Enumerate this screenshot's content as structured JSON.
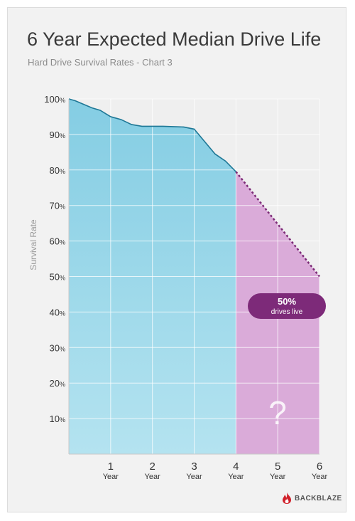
{
  "chart_data": {
    "type": "area",
    "title": "6 Year Expected Median Drive Life",
    "subtitle": "Hard Drive Survival Rates - Chart 3",
    "ylabel": "Survival Rate",
    "xlabel": "",
    "xlim": [
      0,
      6
    ],
    "ylim": [
      0,
      100
    ],
    "y_ticks": [
      "100%",
      "90%",
      "80%",
      "70%",
      "60%",
      "50%",
      "40%",
      "30%",
      "20%",
      "10%"
    ],
    "x_ticks": [
      {
        "num": "1",
        "unit": "Year"
      },
      {
        "num": "2",
        "unit": "Year"
      },
      {
        "num": "3",
        "unit": "Year"
      },
      {
        "num": "4",
        "unit": "Year"
      },
      {
        "num": "5",
        "unit": "Year"
      },
      {
        "num": "6",
        "unit": "Year"
      }
    ],
    "grid": true,
    "series": [
      {
        "kind": "observed",
        "color": "#8fd3e6",
        "line_color": "#1e7896",
        "x": [
          0,
          0.15,
          0.35,
          0.55,
          0.75,
          1.0,
          1.25,
          1.5,
          1.75,
          2.0,
          2.25,
          2.5,
          2.75,
          3.0,
          3.25,
          3.5,
          3.75,
          4.0
        ],
        "y": [
          100,
          99.5,
          98.5,
          97.5,
          96.8,
          95.0,
          94.2,
          92.8,
          92.3,
          92.3,
          92.3,
          92.2,
          92.1,
          91.5,
          88.0,
          84.5,
          82.5,
          79.5
        ]
      },
      {
        "kind": "projected",
        "color": "#d7a3d6",
        "line_color": "#7c2a76",
        "x": [
          4.0,
          6.0
        ],
        "y": [
          79.5,
          50.0
        ]
      }
    ],
    "annotations": [
      {
        "line1": "50%",
        "line2": "drives live",
        "color": "#7d2a79"
      },
      {
        "text": "?",
        "color": "#ffffff"
      }
    ]
  },
  "brand": {
    "name": "BACKBLAZE",
    "color": "#d0202a"
  }
}
